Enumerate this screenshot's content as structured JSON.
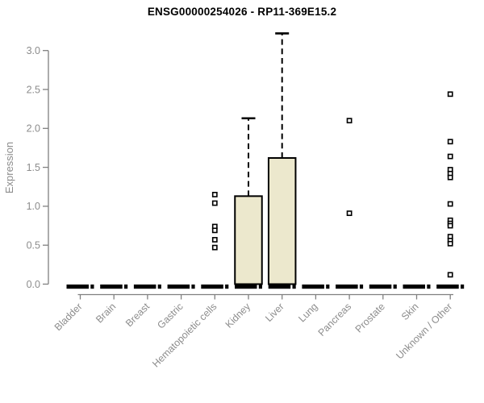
{
  "page": {
    "background": "#ffffff"
  },
  "chart_data": {
    "type": "boxplot",
    "title": "ENSG00000254026 - RP11-369E15.2",
    "ylabel": "Expression",
    "xlabel": "",
    "ylim": [
      0,
      3.25
    ],
    "yticks": [
      "0.0",
      "0.5",
      "1.0",
      "1.5",
      "2.0",
      "2.5",
      "3.0"
    ],
    "grid": false,
    "legend": false,
    "marker": "open-square",
    "categories": [
      "Bladder",
      "Brain",
      "Breast",
      "Gastric",
      "Hematopoietic cells",
      "Kidney",
      "Liver",
      "Lung",
      "Pancreas",
      "Prostate",
      "Skin",
      "Unknown / Other"
    ],
    "boxes": [
      {
        "category": "Bladder",
        "q1": 0,
        "median": 0,
        "q3": 0,
        "whisker_low": 0,
        "whisker_high": 0,
        "outliers": []
      },
      {
        "category": "Brain",
        "q1": 0,
        "median": 0,
        "q3": 0,
        "whisker_low": 0,
        "whisker_high": 0,
        "outliers": []
      },
      {
        "category": "Breast",
        "q1": 0,
        "median": 0,
        "q3": 0,
        "whisker_low": 0,
        "whisker_high": 0,
        "outliers": []
      },
      {
        "category": "Gastric",
        "q1": 0,
        "median": 0,
        "q3": 0,
        "whisker_low": 0,
        "whisker_high": 0,
        "outliers": []
      },
      {
        "category": "Hematopoietic cells",
        "q1": 0,
        "median": 0,
        "q3": 0,
        "whisker_low": 0,
        "whisker_high": 0,
        "outliers": [
          1.15,
          1.04,
          0.74,
          0.69,
          0.57,
          0.47
        ]
      },
      {
        "category": "Kidney",
        "q1": 0,
        "median": 0,
        "q3": 1.13,
        "whisker_low": 0,
        "whisker_high": 2.13,
        "outliers": []
      },
      {
        "category": "Liver",
        "q1": 0,
        "median": 0,
        "q3": 1.62,
        "whisker_low": 0,
        "whisker_high": 3.22,
        "outliers": []
      },
      {
        "category": "Lung",
        "q1": 0,
        "median": 0,
        "q3": 0,
        "whisker_low": 0,
        "whisker_high": 0,
        "outliers": []
      },
      {
        "category": "Pancreas",
        "q1": 0,
        "median": 0,
        "q3": 0,
        "whisker_low": 0,
        "whisker_high": 0,
        "outliers": [
          2.1,
          0.91
        ]
      },
      {
        "category": "Prostate",
        "q1": 0,
        "median": 0,
        "q3": 0,
        "whisker_low": 0,
        "whisker_high": 0,
        "outliers": []
      },
      {
        "category": "Skin",
        "q1": 0,
        "median": 0,
        "q3": 0,
        "whisker_low": 0,
        "whisker_high": 0,
        "outliers": []
      },
      {
        "category": "Unknown / Other",
        "q1": 0,
        "median": 0,
        "q3": 0,
        "whisker_low": 0,
        "whisker_high": 0,
        "outliers": [
          2.44,
          1.83,
          1.64,
          1.47,
          1.42,
          1.37,
          1.03,
          0.82,
          0.78,
          0.75,
          0.61,
          0.56,
          0.52,
          0.12
        ]
      }
    ],
    "colors": {
      "box_fill": "#ece8cd",
      "box_stroke": "#000000",
      "median": "#000000",
      "whisker": "#000000",
      "outlier_stroke": "#000000",
      "outlier_fill": "#ffffff",
      "axis": "#808080",
      "tick_label": "#8c8c8c",
      "title": "#000000"
    }
  }
}
